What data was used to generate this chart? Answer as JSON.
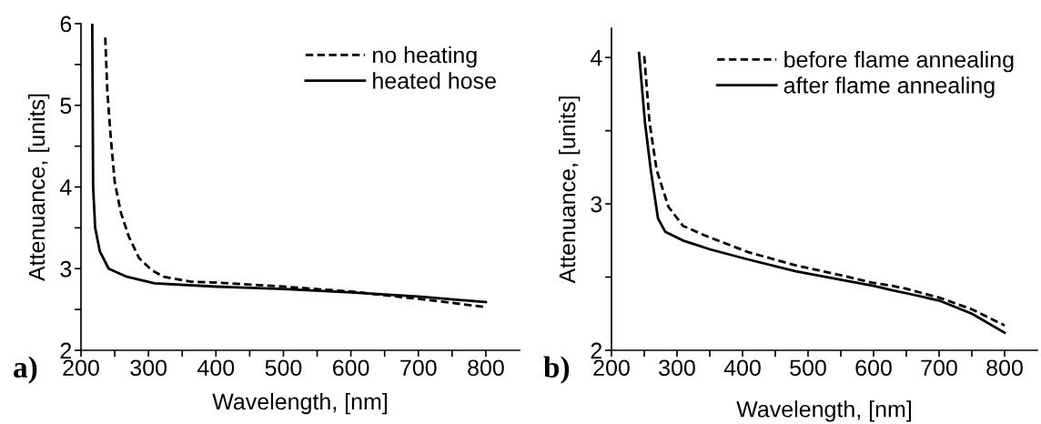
{
  "chart_data": [
    {
      "type": "line",
      "xlabel": "Wavelength, [nm]",
      "ylabel": "Attenuance, [units]",
      "legend": "top right",
      "annotations": [
        "a)"
      ],
      "xlim": [
        200,
        850
      ],
      "ylim": [
        2,
        6
      ],
      "xticks": [
        200,
        {
          "value": 250,
          "label": null
        },
        300,
        {
          "value": 350,
          "label": null
        },
        400,
        {
          "value": 450,
          "label": null
        },
        500,
        {
          "value": 550,
          "label": null
        },
        600,
        {
          "value": 650,
          "label": null
        },
        700,
        {
          "value": 750,
          "label": null
        },
        800
      ],
      "yticks": [
        2,
        {
          "value": 2.5,
          "label": null
        },
        3,
        {
          "value": 3.5,
          "label": null
        },
        4,
        {
          "value": 4.5,
          "label": null
        },
        5,
        {
          "value": 5.5,
          "label": null
        },
        6
      ],
      "series": [
        {
          "name": "no heating",
          "color": "#000000",
          "line_style": "dashed",
          "x": [
            236,
            239,
            244,
            250,
            259,
            271,
            286,
            305,
            323,
            363,
            400,
            500,
            600,
            700,
            800
          ],
          "values": [
            5.83,
            5.18,
            4.62,
            4.06,
            3.69,
            3.39,
            3.13,
            2.98,
            2.9,
            2.84,
            2.83,
            2.78,
            2.72,
            2.63,
            2.53
          ]
        },
        {
          "name": "heated hose",
          "color": "#000000",
          "line_style": "solid",
          "x": [
            216.7,
            218,
            221,
            228,
            241,
            268,
            309,
            400,
            500,
            600,
            700,
            800
          ],
          "values": [
            6,
            4.0,
            3.5,
            3.21,
            3.0,
            2.9,
            2.82,
            2.78,
            2.75,
            2.71,
            2.66,
            2.59
          ]
        }
      ]
    },
    {
      "type": "line",
      "xlabel": "Wavelength, [nm]",
      "ylabel": "Attenuance, [units]",
      "legend": "top right",
      "annotations": [
        "b)"
      ],
      "xlim": [
        200,
        850
      ],
      "ylim": [
        2,
        4.2
      ],
      "xticks": [
        200,
        {
          "value": 250,
          "label": null
        },
        300,
        {
          "value": 350,
          "label": null
        },
        400,
        {
          "value": 450,
          "label": null
        },
        500,
        {
          "value": 550,
          "label": null
        },
        600,
        {
          "value": 650,
          "label": null
        },
        700,
        {
          "value": 750,
          "label": null
        },
        800
      ],
      "yticks": [
        2,
        {
          "value": 2.5,
          "label": null
        },
        3,
        {
          "value": 3.5,
          "label": null
        },
        4
      ],
      "series": [
        {
          "name": "before flame annealing",
          "color": "#000000",
          "line_style": "dashed",
          "x": [
            250,
            258,
            269,
            287,
            309,
            345,
            409,
            481,
            553,
            600,
            629,
            650,
            700,
            750,
            800
          ],
          "values": [
            4.01,
            3.56,
            3.23,
            2.98,
            2.85,
            2.78,
            2.67,
            2.58,
            2.51,
            2.46,
            2.44,
            2.42,
            2.36,
            2.28,
            2.17
          ]
        },
        {
          "name": "after flame annealing",
          "color": "#000000",
          "line_style": "solid",
          "x": [
            242,
            251,
            260,
            271,
            282,
            309,
            350,
            409,
            481,
            553,
            600,
            629,
            650,
            700,
            750,
            800
          ],
          "values": [
            4.03,
            3.56,
            3.23,
            2.9,
            2.81,
            2.75,
            2.69,
            2.62,
            2.54,
            2.48,
            2.44,
            2.41,
            2.39,
            2.34,
            2.25,
            2.12
          ]
        }
      ]
    }
  ]
}
